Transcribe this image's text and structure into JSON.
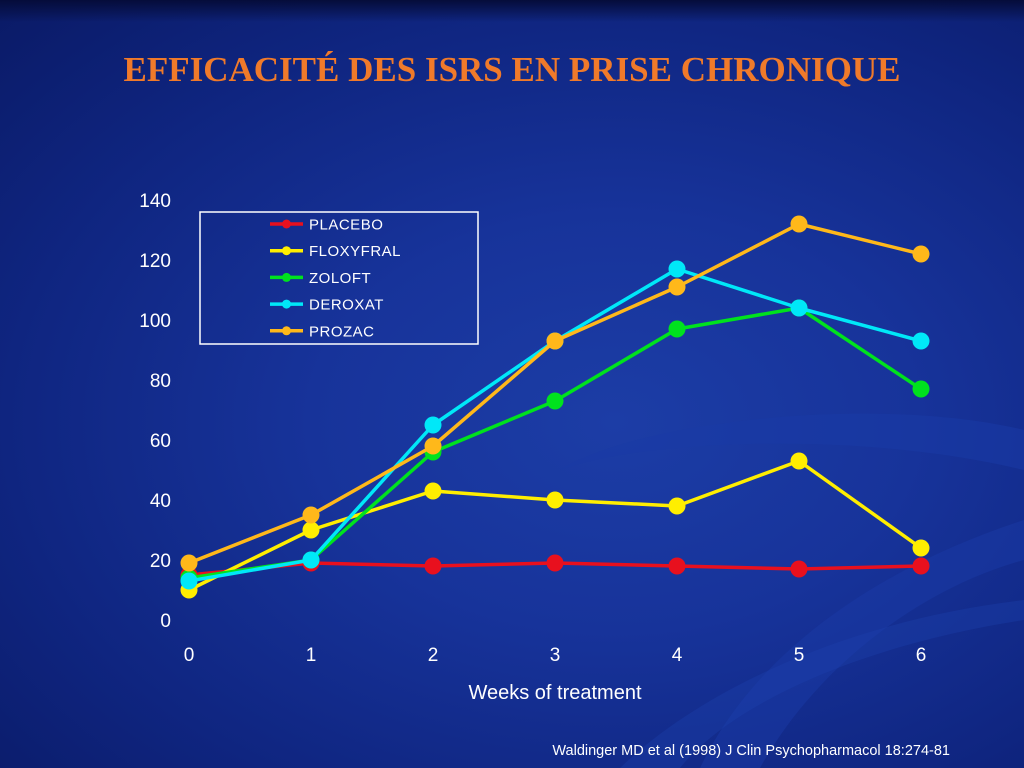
{
  "slide": {
    "title": "EFFICACITÉ DES ISRS EN PRISE CHRONIQUE",
    "source": "Waldinger MD et al (1998) J Clin Psychopharmacol 18:274-81"
  },
  "chart_data": {
    "type": "line",
    "title": "",
    "xlabel": "Weeks of treatment",
    "ylabel": "",
    "x": [
      0,
      1,
      2,
      3,
      4,
      5,
      6
    ],
    "xlim": [
      0,
      6
    ],
    "ylim": [
      0,
      140
    ],
    "yticks": [
      0,
      20,
      40,
      60,
      80,
      100,
      120,
      140
    ],
    "grid": false,
    "legend_position": "top-left",
    "series": [
      {
        "name": "PLACEBO",
        "color": "#e8101e",
        "values": [
          15,
          19,
          18,
          19,
          18,
          17,
          18
        ]
      },
      {
        "name": "FLOXYFRAL",
        "color": "#ffee00",
        "values": [
          10,
          30,
          43,
          40,
          38,
          53,
          24
        ]
      },
      {
        "name": "ZOLOFT",
        "color": "#00e21e",
        "values": [
          14,
          20,
          56,
          73,
          97,
          104,
          77
        ]
      },
      {
        "name": "DEROXAT",
        "color": "#00e8f8",
        "values": [
          13,
          20,
          65,
          93,
          117,
          104,
          93
        ]
      },
      {
        "name": "PROZAC",
        "color": "#ffb81a",
        "values": [
          19,
          35,
          58,
          93,
          111,
          132,
          122
        ]
      }
    ]
  }
}
